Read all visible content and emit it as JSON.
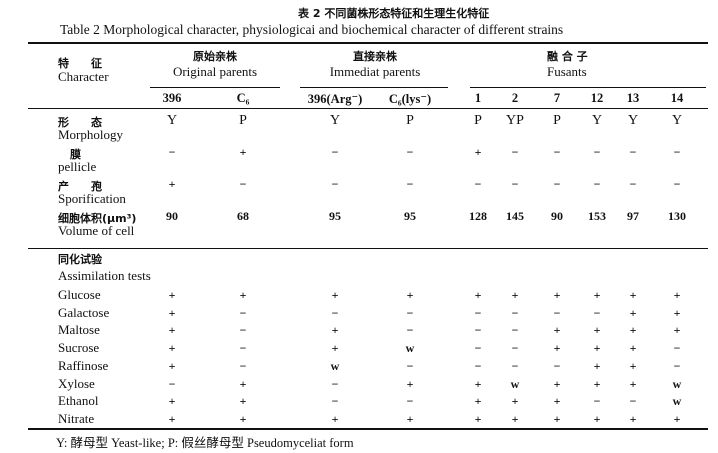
{
  "title_cn": "表 2  不同菌株形态特征和生理生化特征",
  "title_en": "Table 2  Morphological character, physiologicai and biochemical character of different strains",
  "header": {
    "character_cn": "特　　征",
    "character_en": "Character",
    "groups": [
      {
        "cn": "原始亲株",
        "en": "Original parents"
      },
      {
        "cn": "直接亲株",
        "en": "Immediat parents"
      },
      {
        "cn": "融 合 子",
        "en": "Fusants"
      }
    ],
    "columns": [
      "396",
      "C₆",
      "396(Arg⁻)",
      "C₆(lys⁻)",
      "1",
      "2",
      "7",
      "12",
      "13",
      "14"
    ]
  },
  "rows": [
    {
      "cn": "形　　态",
      "en": "Morphology",
      "values": [
        "Y",
        "P",
        "Y",
        "P",
        "P",
        "YP",
        "P",
        "Y",
        "Y",
        "Y"
      ]
    },
    {
      "cn": "膜",
      "en": "pellicle",
      "values": [
        "−",
        "+",
        "−",
        "−",
        "+",
        "−",
        "−",
        "−",
        "−",
        "−"
      ]
    },
    {
      "cn": "产　　孢",
      "en": "Sporification",
      "values": [
        "+",
        "−",
        "−",
        "−",
        "−",
        "−",
        "−",
        "−",
        "−",
        "−"
      ]
    },
    {
      "cn": "细胞体积(μm³)",
      "en": "Volume of cell",
      "values": [
        "90",
        "68",
        "95",
        "95",
        "128",
        "145",
        "90",
        "153",
        "97",
        "130"
      ]
    }
  ],
  "assimilation": {
    "cn": "同化试验",
    "en": "Assimilation tests",
    "rows": [
      {
        "label": "Glucose",
        "values": [
          "+",
          "+",
          "+",
          "+",
          "+",
          "+",
          "+",
          "+",
          "+",
          "+"
        ]
      },
      {
        "label": "Galactose",
        "values": [
          "+",
          "−",
          "−",
          "−",
          "−",
          "−",
          "−",
          "−",
          "+",
          "+"
        ]
      },
      {
        "label": "Maltose",
        "values": [
          "+",
          "−",
          "+",
          "−",
          "−",
          "−",
          "+",
          "+",
          "+",
          "+"
        ]
      },
      {
        "label": "Sucrose",
        "values": [
          "+",
          "−",
          "+",
          "w",
          "−",
          "−",
          "+",
          "+",
          "+",
          "−"
        ]
      },
      {
        "label": "Raffinose",
        "values": [
          "+",
          "−",
          "w",
          "−",
          "−",
          "−",
          "−",
          "+",
          "+",
          "−"
        ]
      },
      {
        "label": "Xylose",
        "values": [
          "−",
          "+",
          "−",
          "+",
          "+",
          "w",
          "+",
          "+",
          "+",
          "w"
        ]
      },
      {
        "label": "Ethanol",
        "values": [
          "+",
          "+",
          "−",
          "−",
          "+",
          "+",
          "+",
          "−",
          "−",
          "w"
        ]
      },
      {
        "label": "Nitrate",
        "values": [
          "+",
          "+",
          "+",
          "+",
          "+",
          "+",
          "+",
          "+",
          "+",
          "+"
        ]
      }
    ]
  },
  "footnote": "Y: 酵母型 Yeast-like; P: 假丝酵母型 Pseudomyceliat form"
}
